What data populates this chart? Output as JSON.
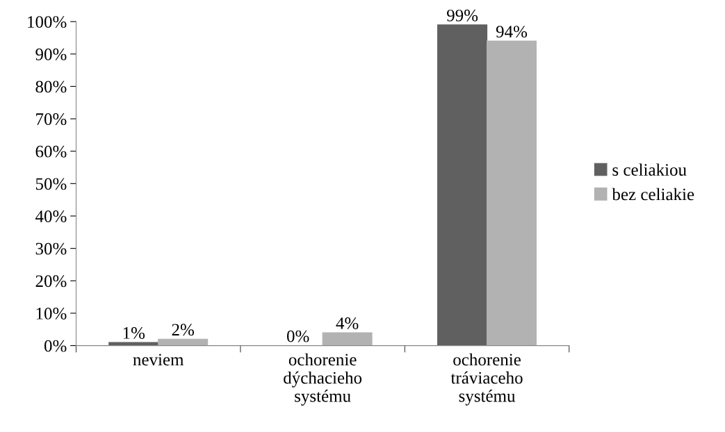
{
  "chart_data": {
    "type": "bar",
    "categories": [
      "neviem",
      "ochorenie\ndýchacieho\nsystému",
      "ochorenie\ntráviaceho\nsystému"
    ],
    "series": [
      {
        "name": "s celiakiou",
        "color": "#606060",
        "values": [
          1,
          0,
          99
        ],
        "value_labels": [
          "1%",
          "0%",
          "99%"
        ]
      },
      {
        "name": "bez celiakie",
        "color": "#b2b2b2",
        "values": [
          2,
          4,
          94
        ],
        "value_labels": [
          "2%",
          "4%",
          "94%"
        ]
      }
    ],
    "ylim": [
      0,
      100
    ],
    "yticks": [
      {
        "value": 0,
        "label": "0%"
      },
      {
        "value": 10,
        "label": "10%"
      },
      {
        "value": 20,
        "label": "20%"
      },
      {
        "value": 30,
        "label": "30%"
      },
      {
        "value": 40,
        "label": "40%"
      },
      {
        "value": 50,
        "label": "50%"
      },
      {
        "value": 60,
        "label": "60%"
      },
      {
        "value": 70,
        "label": "70%"
      },
      {
        "value": 80,
        "label": "80%"
      },
      {
        "value": 90,
        "label": "90%"
      },
      {
        "value": 100,
        "label": "100%"
      }
    ],
    "grid": false,
    "legend": "right"
  }
}
